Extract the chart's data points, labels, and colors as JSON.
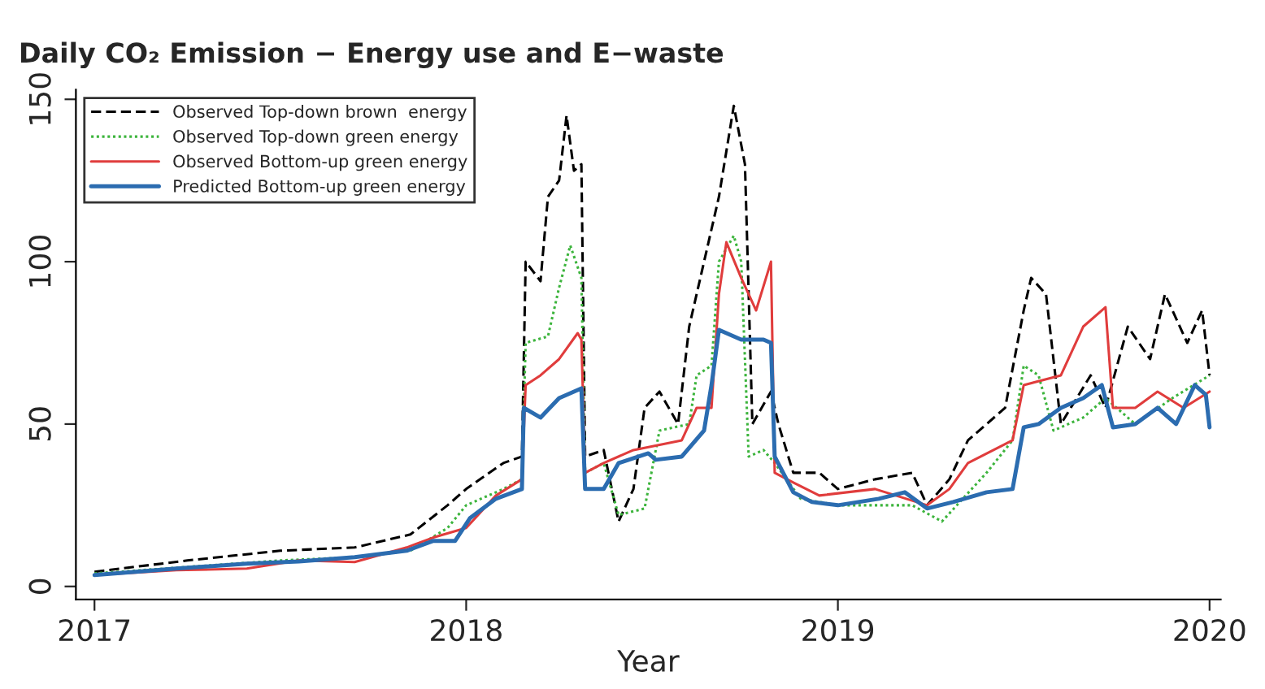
{
  "chart_data": {
    "type": "line",
    "title": "Daily CO₂ Emission − Energy use and E−waste",
    "xlabel": "Year",
    "xlim": [
      2016.95,
      2020.03
    ],
    "xticks": [
      2017,
      2018,
      2019,
      2020
    ],
    "ylim": [
      -4,
      153
    ],
    "yticks": [
      0,
      50,
      100,
      150
    ],
    "grid": false,
    "legend": "top left",
    "series": [
      {
        "name": "Observed Top-down brown  energy",
        "color": "#000000",
        "line_style": "dashed",
        "x": [
          2017.0,
          2017.25,
          2017.5,
          2017.7,
          2017.85,
          2017.95,
          2018.0,
          2018.1,
          2018.15,
          2018.16,
          2018.2,
          2018.22,
          2018.25,
          2018.27,
          2018.29,
          2018.31,
          2018.32,
          2018.37,
          2018.41,
          2018.45,
          2018.48,
          2018.52,
          2018.57,
          2018.6,
          2018.64,
          2018.68,
          2018.72,
          2018.75,
          2018.77,
          2018.82,
          2018.84,
          2018.88,
          2018.95,
          2019.0,
          2019.1,
          2019.2,
          2019.24,
          2019.3,
          2019.35,
          2019.45,
          2019.5,
          2019.52,
          2019.56,
          2019.6,
          2019.68,
          2019.72,
          2019.78,
          2019.84,
          2019.88,
          2019.94,
          2019.98,
          2020.0
        ],
        "values": [
          4.5,
          8,
          11,
          12,
          16,
          25,
          30,
          38,
          40,
          100,
          94,
          120,
          125,
          145,
          128,
          130,
          40,
          42,
          20,
          30,
          55,
          60,
          50,
          80,
          100,
          120,
          148,
          130,
          50,
          60,
          50,
          35,
          35,
          30,
          33,
          35,
          25,
          33,
          45,
          55,
          85,
          95,
          90,
          50,
          65,
          55,
          80,
          70,
          90,
          75,
          85,
          65
        ]
      },
      {
        "name": "Observed Top-down green energy",
        "color": "#3cb43c",
        "line_style": "dotted",
        "x": [
          2017.0,
          2017.25,
          2017.5,
          2017.7,
          2017.85,
          2017.95,
          2018.0,
          2018.1,
          2018.15,
          2018.16,
          2018.22,
          2018.25,
          2018.28,
          2018.31,
          2018.32,
          2018.37,
          2018.41,
          2018.48,
          2018.52,
          2018.6,
          2018.62,
          2018.66,
          2018.68,
          2018.72,
          2018.74,
          2018.76,
          2018.8,
          2018.83,
          2018.9,
          2019.0,
          2019.2,
          2019.28,
          2019.4,
          2019.47,
          2019.5,
          2019.54,
          2019.58,
          2019.66,
          2019.72,
          2019.8,
          2019.9,
          2020.0
        ],
        "values": [
          4,
          6,
          8,
          9,
          11,
          18,
          25,
          30,
          33,
          75,
          77,
          92,
          105,
          95,
          35,
          38,
          22,
          24,
          48,
          50,
          65,
          68,
          100,
          108,
          100,
          40,
          42,
          38,
          27,
          25,
          25,
          20,
          35,
          45,
          68,
          65,
          48,
          52,
          58,
          50,
          58,
          65
        ]
      },
      {
        "name": "Observed Bottom-up green energy",
        "color": "#e03c3c",
        "line_style": "solid",
        "x": [
          2017.0,
          2017.22,
          2017.41,
          2017.55,
          2017.7,
          2017.84,
          2017.91,
          2018.0,
          2018.08,
          2018.15,
          2018.16,
          2018.2,
          2018.25,
          2018.3,
          2018.31,
          2018.32,
          2018.37,
          2018.45,
          2018.58,
          2018.62,
          2018.66,
          2018.68,
          2018.7,
          2018.74,
          2018.78,
          2018.82,
          2018.83,
          2018.88,
          2018.95,
          2019.1,
          2019.24,
          2019.3,
          2019.35,
          2019.47,
          2019.5,
          2019.6,
          2019.66,
          2019.72,
          2019.74,
          2019.8,
          2019.86,
          2019.93,
          2020.0
        ],
        "values": [
          3.5,
          5,
          5.5,
          8,
          7.5,
          12,
          15,
          18,
          28,
          33,
          62,
          65,
          70,
          78,
          76,
          35,
          38,
          42,
          45,
          55,
          55,
          90,
          106,
          95,
          85,
          100,
          35,
          32,
          28,
          30,
          25,
          30,
          38,
          45,
          62,
          65,
          80,
          86,
          55,
          55,
          60,
          55,
          60
        ]
      },
      {
        "name": "Predicted Bottom-up green energy",
        "color": "#2b6cb0",
        "line_style": "solid",
        "x": [
          2017.0,
          2017.22,
          2017.41,
          2017.55,
          2017.7,
          2017.84,
          2017.91,
          2017.97,
          2018.01,
          2018.08,
          2018.15,
          2018.155,
          2018.2,
          2018.25,
          2018.31,
          2018.32,
          2018.37,
          2018.41,
          2018.49,
          2018.51,
          2018.58,
          2018.64,
          2018.66,
          2018.68,
          2018.74,
          2018.8,
          2018.82,
          2018.83,
          2018.88,
          2018.93,
          2019.0,
          2019.11,
          2019.18,
          2019.24,
          2019.31,
          2019.4,
          2019.47,
          2019.5,
          2019.54,
          2019.6,
          2019.66,
          2019.71,
          2019.74,
          2019.8,
          2019.86,
          2019.91,
          2019.96,
          2019.99,
          2020.0
        ],
        "values": [
          3.5,
          5.5,
          7,
          7.7,
          9,
          11,
          14,
          14,
          21,
          27,
          30,
          55,
          52,
          58,
          61,
          30,
          30,
          38,
          41,
          39,
          40,
          48,
          62,
          79,
          76,
          76,
          75,
          40,
          29,
          26,
          25,
          27,
          29,
          24,
          26,
          29,
          30,
          49,
          50,
          55,
          58,
          62,
          49,
          50,
          55,
          50,
          62,
          59,
          49
        ]
      }
    ]
  }
}
